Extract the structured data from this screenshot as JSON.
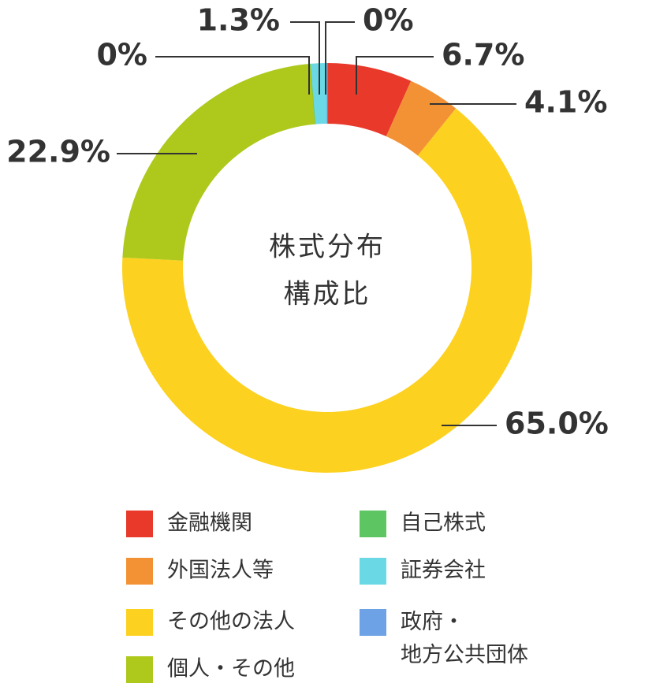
{
  "chart_data": {
    "type": "donut",
    "title": [
      "株式分布",
      "構成比"
    ],
    "categories": [
      "金融機関",
      "外国法人等",
      "その他の法人",
      "個人・その他",
      "自己株式",
      "証券会社",
      "政府・地方公共団体"
    ],
    "values": [
      6.7,
      4.1,
      65.0,
      22.9,
      0,
      1.3,
      0
    ],
    "value_labels": [
      "6.7%",
      "4.1%",
      "65.0%",
      "22.9%",
      "0%",
      "1.3%",
      "0%"
    ],
    "colors": [
      "#e8392a",
      "#f39234",
      "#fdd11f",
      "#aec81c",
      "#5dc562",
      "#6ad8e5",
      "#6da2e6"
    ]
  }
}
